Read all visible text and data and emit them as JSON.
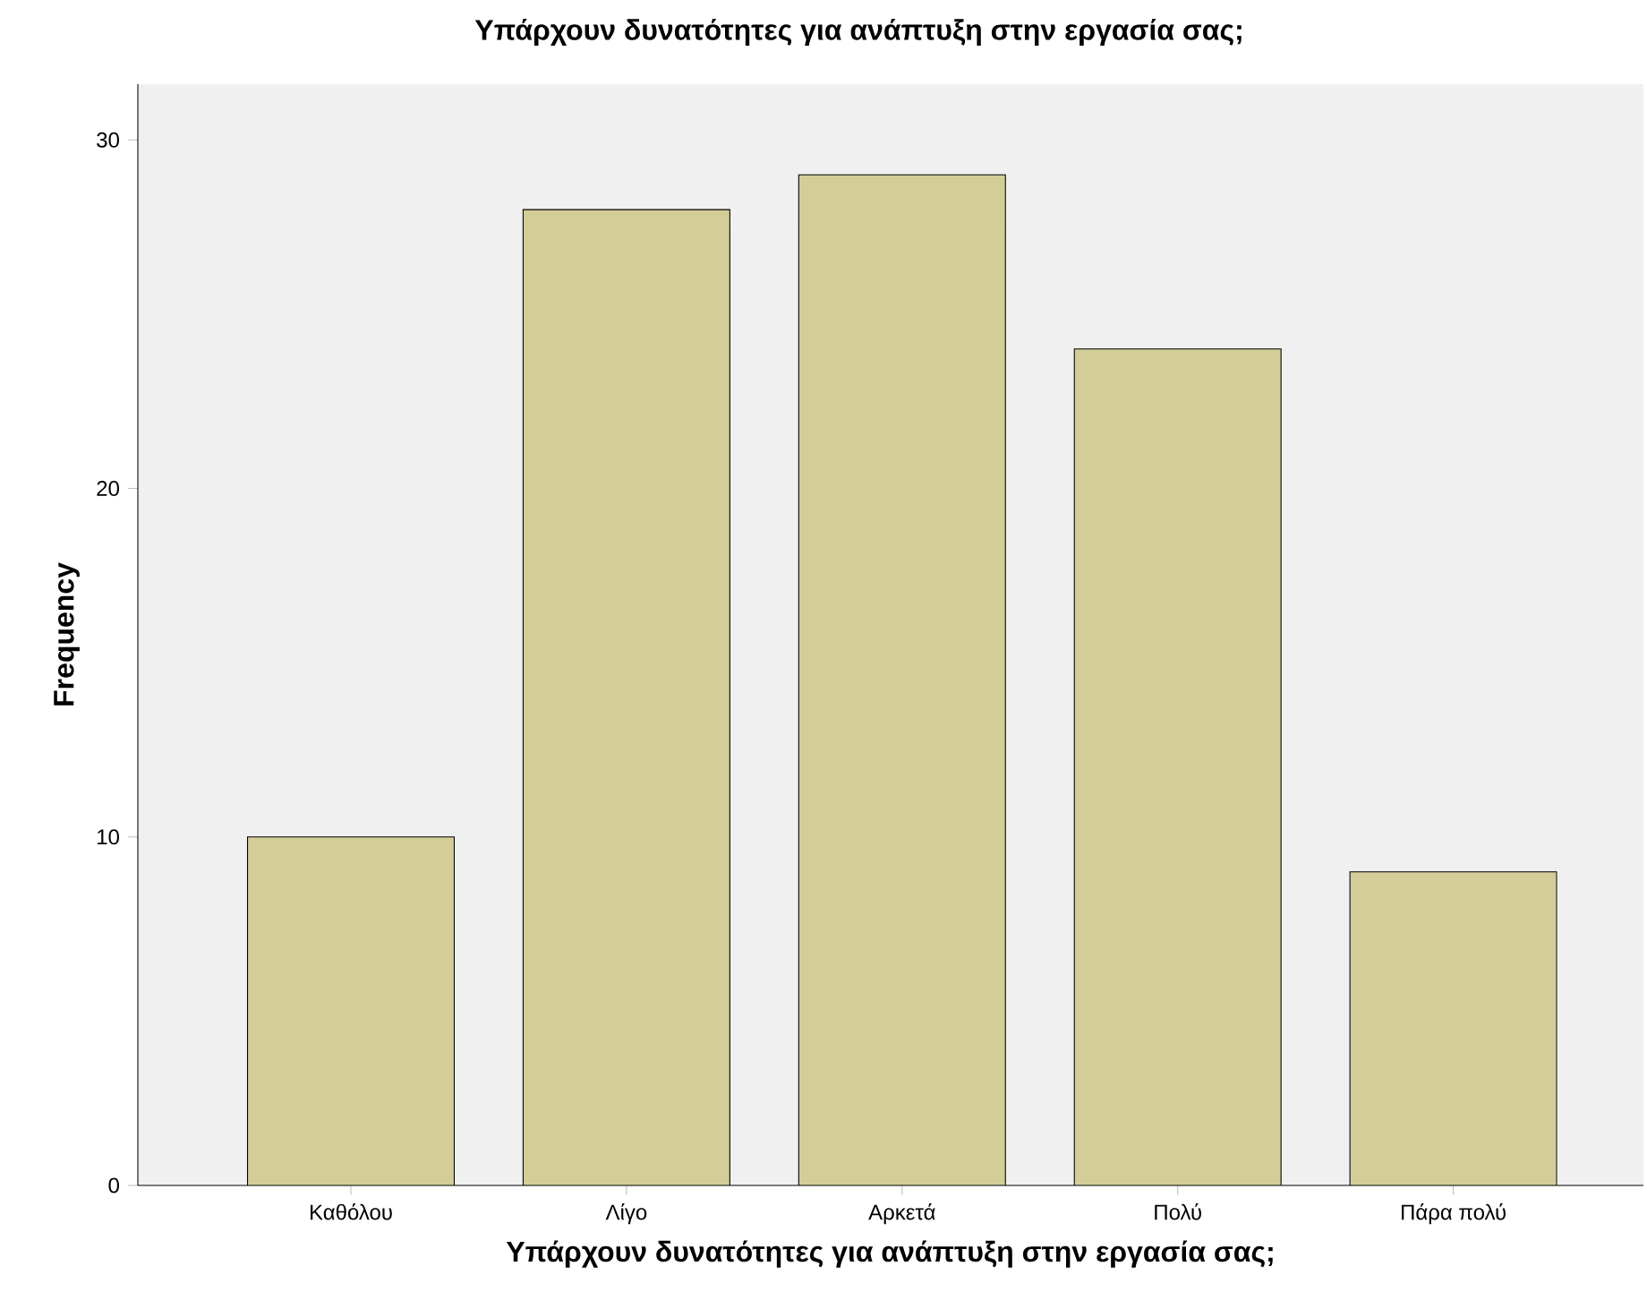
{
  "chart_data": {
    "type": "bar",
    "title": "Υπάρχουν δυνατότητες για ανάπτυξη στην εργασία σας;",
    "xlabel": "Υπάρχουν δυνατότητες για ανάπτυξη στην εργασία σας;",
    "ylabel": "Frequency",
    "categories": [
      "Καθόλου",
      "Λίγο",
      "Αρκετά",
      "Πολύ",
      "Πάρα πολύ"
    ],
    "values": [
      10,
      28,
      29,
      24,
      9
    ],
    "color": "#d3cd98",
    "ylim": [
      0,
      31.6
    ],
    "yticks": [
      0,
      10,
      20,
      30
    ],
    "grid": false
  }
}
